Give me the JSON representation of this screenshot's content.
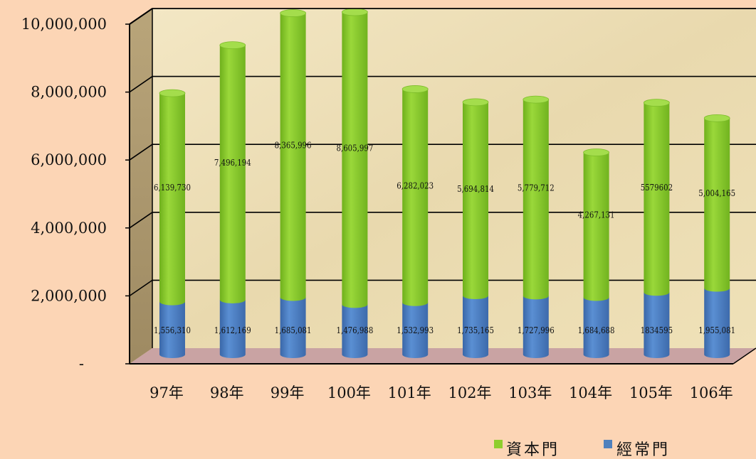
{
  "chart_data": {
    "type": "bar",
    "stacked": true,
    "style": "3d-cylinder",
    "categories": [
      "97年",
      "98年",
      "99年",
      "100年",
      "101年",
      "102年",
      "103年",
      "104年",
      "105年",
      "106年"
    ],
    "series": [
      {
        "name": "經常門",
        "color": "#4f81bd",
        "values": [
          1556310,
          1612169,
          1685081,
          1476988,
          1532993,
          1735165,
          1727996,
          1684688,
          1834595,
          1955081
        ],
        "labels": [
          "1,556,310",
          "1,612,169",
          "1,685,081",
          "1,476,988",
          "1,532,993",
          "1,735,165",
          "1,727,996",
          "1,684,688",
          "1834595",
          "1,955,081"
        ]
      },
      {
        "name": "資本門",
        "color": "#8fce2e",
        "values": [
          6139730,
          7496194,
          8365996,
          8605997,
          6282023,
          5694814,
          5779712,
          4267131,
          5579602,
          5004165
        ],
        "labels": [
          "6,139,730",
          "7,496,194",
          "8,365,996",
          "8,605,997",
          "6,282,023",
          "5,694,814",
          "5,779,712",
          "4,267,131",
          "5579602",
          "5,004,165"
        ]
      }
    ],
    "ylim": [
      0,
      10000000
    ],
    "yticks": [
      {
        "value": 0,
        "label": "-"
      },
      {
        "value": 2000000,
        "label": "2,000,000"
      },
      {
        "value": 4000000,
        "label": "4,000,000"
      },
      {
        "value": 6000000,
        "label": "6,000,000"
      },
      {
        "value": 8000000,
        "label": "8,000,000"
      },
      {
        "value": 10000000,
        "label": "10,000,000"
      }
    ],
    "grid": true,
    "legend_position": "bottom-right",
    "legend": [
      {
        "name": "資本門",
        "color": "#8fce2e"
      },
      {
        "name": "經常門",
        "color": "#4f81bd"
      }
    ]
  }
}
